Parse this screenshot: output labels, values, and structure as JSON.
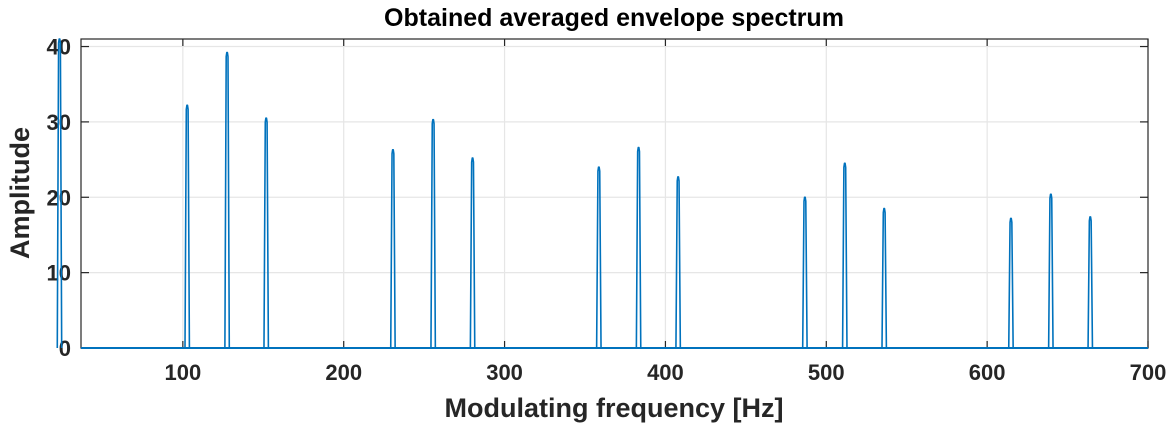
{
  "chart_data": {
    "type": "line",
    "title": "Obtained averaged envelope spectrum",
    "xlabel": "Modulating frequency [Hz]",
    "ylabel": "Amplitude",
    "xlim": [
      0,
      700
    ],
    "ylim": [
      0,
      41
    ],
    "xticks": [
      100,
      200,
      300,
      400,
      500,
      600,
      700
    ],
    "yticks": [
      0,
      10,
      20,
      30,
      40
    ],
    "grid": true,
    "color": "#0072BD",
    "baseline": 0,
    "peaks": [
      {
        "x": 23.3,
        "y": 41
      },
      {
        "x": 102.7,
        "y": 32.2
      },
      {
        "x": 127.5,
        "y": 39.2
      },
      {
        "x": 151.8,
        "y": 30.5
      },
      {
        "x": 230.6,
        "y": 26.3
      },
      {
        "x": 255.6,
        "y": 30.3
      },
      {
        "x": 280.1,
        "y": 25.2
      },
      {
        "x": 358.6,
        "y": 24
      },
      {
        "x": 383.3,
        "y": 26.6
      },
      {
        "x": 407.9,
        "y": 22.7
      },
      {
        "x": 486.7,
        "y": 20
      },
      {
        "x": 511.5,
        "y": 24.5
      },
      {
        "x": 536.0,
        "y": 18.5
      },
      {
        "x": 614.8,
        "y": 17.2
      },
      {
        "x": 639.6,
        "y": 20.4
      },
      {
        "x": 664.1,
        "y": 17.4
      }
    ]
  }
}
